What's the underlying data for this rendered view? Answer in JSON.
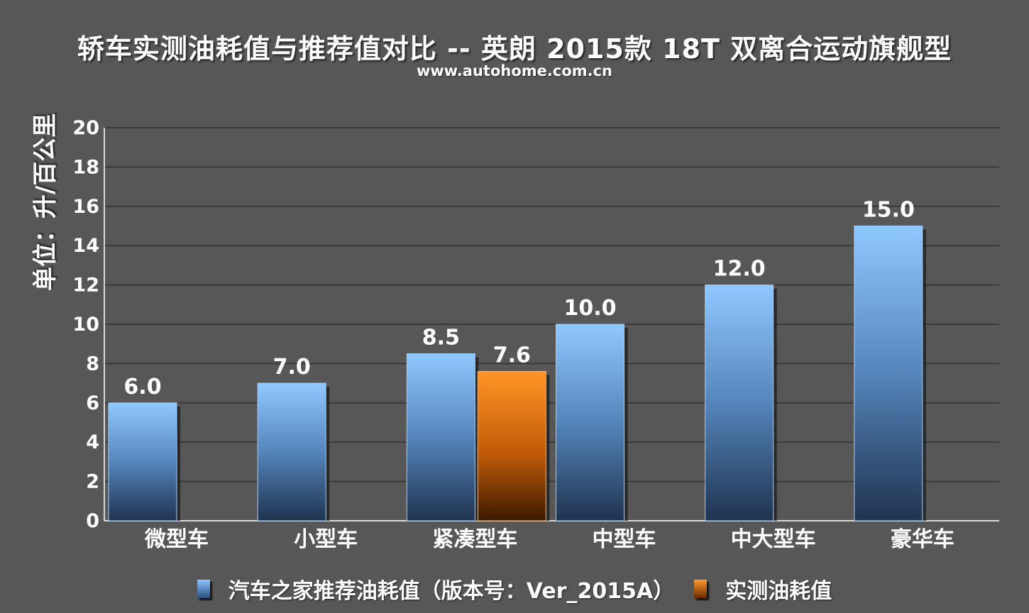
{
  "title": "轿车实测油耗值与推荐值对比 -- 英朗 2015款 18T 双离合运动旗舰型",
  "subtitle": "www.autohome.com.cn",
  "chart_data": {
    "type": "bar",
    "ylabel": "单位：升/百公里",
    "ylim": [
      0,
      20
    ],
    "yticks": [
      0,
      2,
      4,
      6,
      8,
      10,
      12,
      14,
      16,
      18,
      20
    ],
    "categories": [
      "微型车",
      "小型车",
      "紧凑型车",
      "中型车",
      "中大型车",
      "豪华车"
    ],
    "grid": true,
    "legend_position": "bottom",
    "series": [
      {
        "name": "汽车之家推荐油耗值（版本号：Ver_2015A）",
        "color": "#7db8f5",
        "values": [
          6.0,
          7.0,
          8.5,
          10.0,
          12.0,
          15.0
        ],
        "labels": [
          "6.0",
          "7.0",
          "8.5",
          "10.0",
          "12.0",
          "15.0"
        ]
      },
      {
        "name": "实测油耗值",
        "color": "#f58a1f",
        "values": [
          null,
          null,
          7.6,
          null,
          null,
          null
        ],
        "labels": [
          "",
          "",
          "7.6",
          "",
          "",
          ""
        ]
      }
    ]
  },
  "legend": {
    "item1": "汽车之家推荐油耗值（版本号：Ver_2015A）",
    "item2": "实测油耗值"
  }
}
